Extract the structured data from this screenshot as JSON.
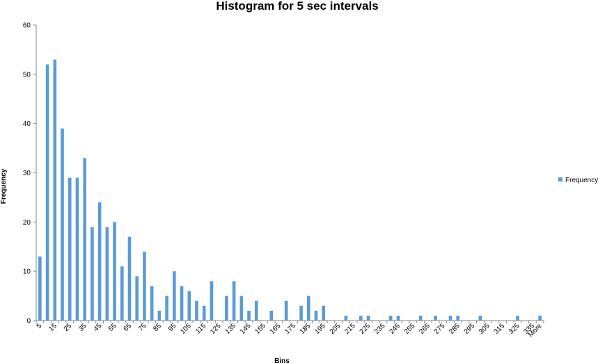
{
  "chart_data": {
    "type": "bar",
    "title": "Histogram for 5 sec intervals",
    "xlabel": "Bins",
    "ylabel": "Frequency",
    "ylim": [
      0,
      60
    ],
    "yticks": [
      0,
      10,
      20,
      30,
      40,
      50,
      60
    ],
    "grid": false,
    "legend_position": "right",
    "categories": [
      "5",
      "10",
      "15",
      "20",
      "25",
      "30",
      "35",
      "40",
      "45",
      "50",
      "55",
      "60",
      "65",
      "70",
      "75",
      "80",
      "85",
      "90",
      "95",
      "100",
      "105",
      "110",
      "115",
      "120",
      "125",
      "130",
      "135",
      "140",
      "145",
      "150",
      "155",
      "160",
      "165",
      "170",
      "175",
      "180",
      "185",
      "190",
      "195",
      "200",
      "205",
      "210",
      "215",
      "220",
      "225",
      "230",
      "235",
      "240",
      "245",
      "250",
      "255",
      "260",
      "265",
      "270",
      "275",
      "280",
      "285",
      "290",
      "295",
      "300",
      "305",
      "310",
      "315",
      "320",
      "325",
      "330",
      "335",
      "More"
    ],
    "tick_labels": [
      "5",
      "15",
      "25",
      "35",
      "45",
      "55",
      "65",
      "75",
      "85",
      "95",
      "105",
      "115",
      "125",
      "135",
      "145",
      "155",
      "165",
      "175",
      "185",
      "195",
      "205",
      "215",
      "225",
      "235",
      "245",
      "255",
      "265",
      "275",
      "285",
      "295",
      "305",
      "315",
      "325",
      "335",
      "More"
    ],
    "series": [
      {
        "name": "Frequency",
        "color": "#5b9bd5",
        "values": [
          13,
          52,
          53,
          39,
          29,
          29,
          33,
          19,
          24,
          19,
          20,
          11,
          17,
          9,
          14,
          7,
          2,
          5,
          10,
          7,
          6,
          4,
          3,
          8,
          0,
          5,
          8,
          5,
          2,
          4,
          0,
          2,
          0,
          4,
          0,
          3,
          5,
          2,
          3,
          0,
          0,
          1,
          0,
          1,
          1,
          0,
          0,
          1,
          1,
          0,
          0,
          1,
          0,
          1,
          0,
          1,
          1,
          0,
          0,
          1,
          0,
          0,
          0,
          0,
          1,
          0,
          0,
          1
        ]
      }
    ]
  }
}
